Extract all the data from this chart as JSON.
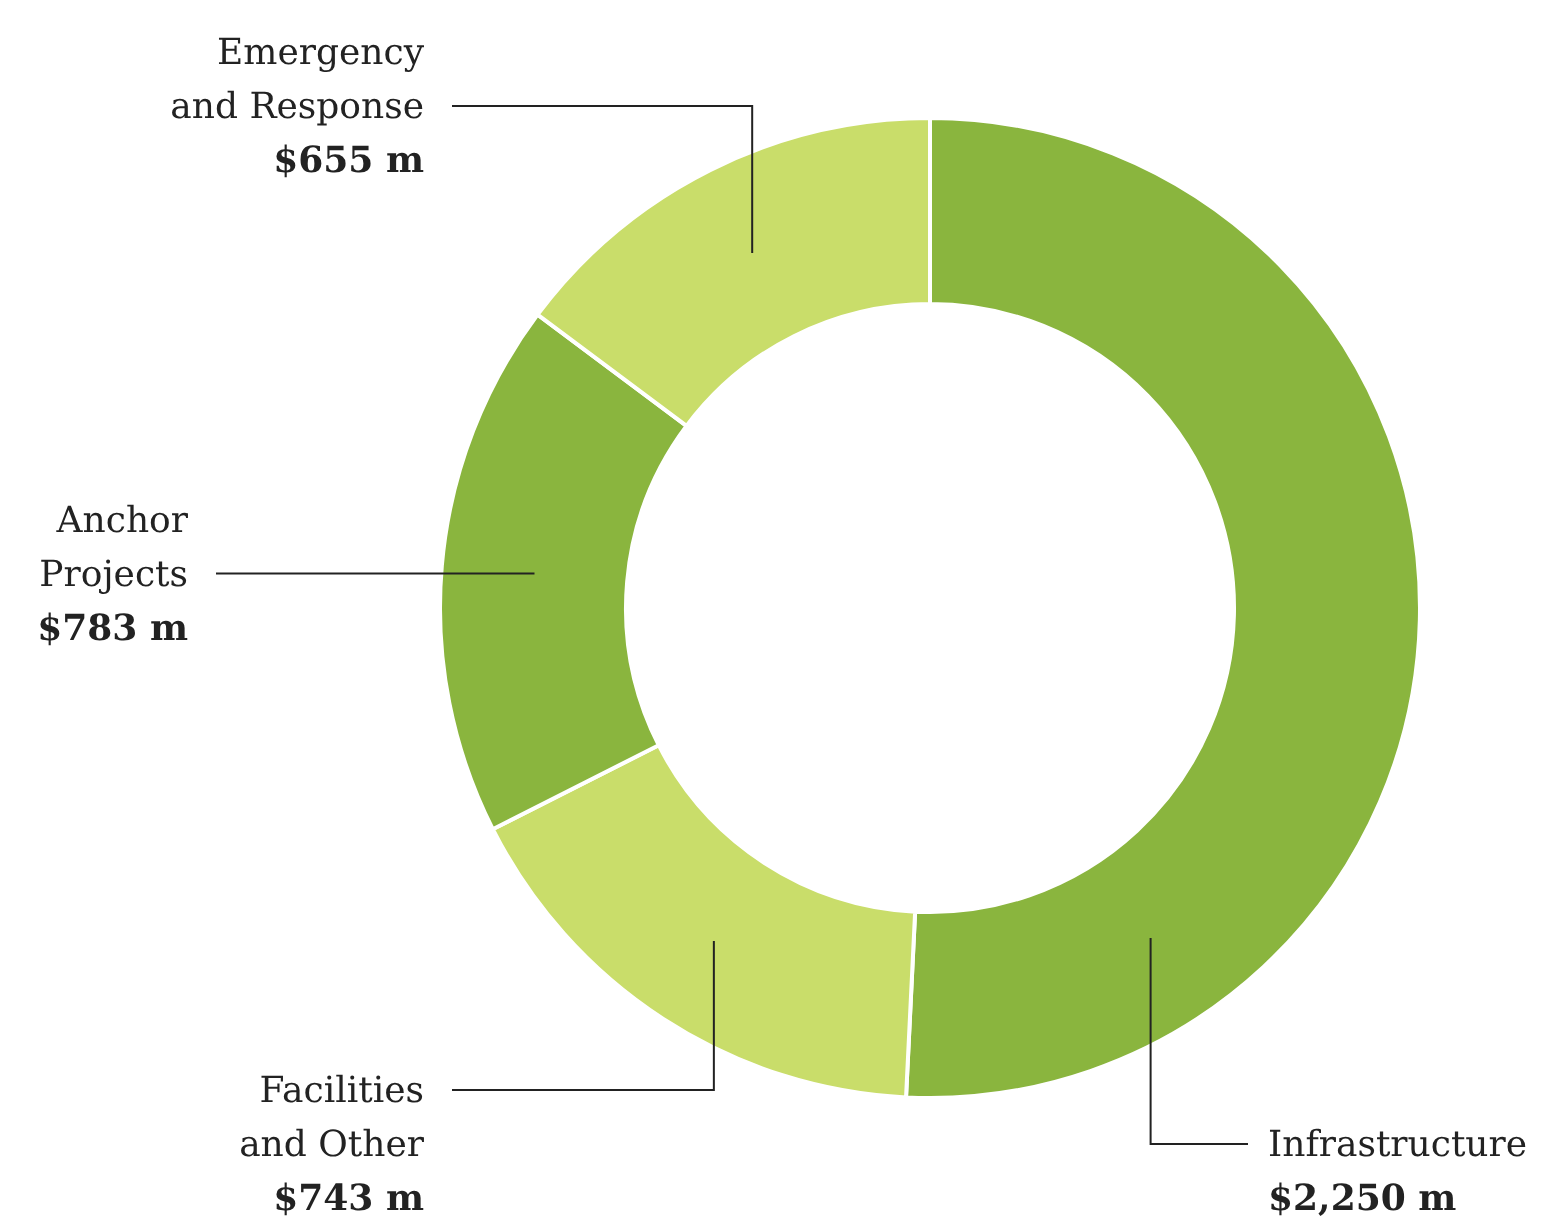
{
  "chart_data": {
    "type": "donut",
    "categories": [
      "Infrastructure",
      "Facilities and Other",
      "Anchor Projects",
      "Emergency and Response"
    ],
    "values": [
      2250,
      743,
      783,
      655
    ],
    "colors": [
      "#8ab53e",
      "#c9dd6a",
      "#8ab53e",
      "#c9dd6a"
    ],
    "value_labels": [
      "$2,250 m",
      "$743 m",
      "$783 m",
      "$655 m"
    ]
  }
}
